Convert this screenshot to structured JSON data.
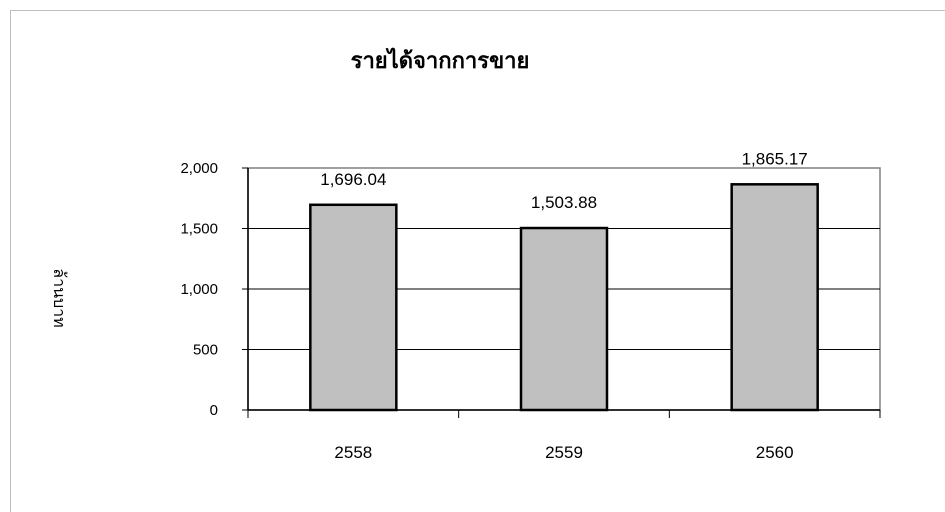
{
  "chart_data": {
    "type": "bar",
    "title": "รายได้จากการขาย",
    "ylabel": "ล้านบาท",
    "xlabel": "",
    "categories": [
      "2558",
      "2559",
      "2560"
    ],
    "values": [
      1696.04,
      1503.88,
      1865.17
    ],
    "value_labels": [
      "1,696.04",
      "1,503.88",
      "1,865.17"
    ],
    "ylim": [
      0,
      2000
    ],
    "yticks": [
      0,
      500,
      1000,
      1500,
      2000
    ],
    "ytick_labels": [
      "0",
      "500",
      "1,000",
      "1,500",
      "2,000"
    ],
    "grid": true,
    "legend": "none",
    "bar_color": "#c0c0c0"
  }
}
